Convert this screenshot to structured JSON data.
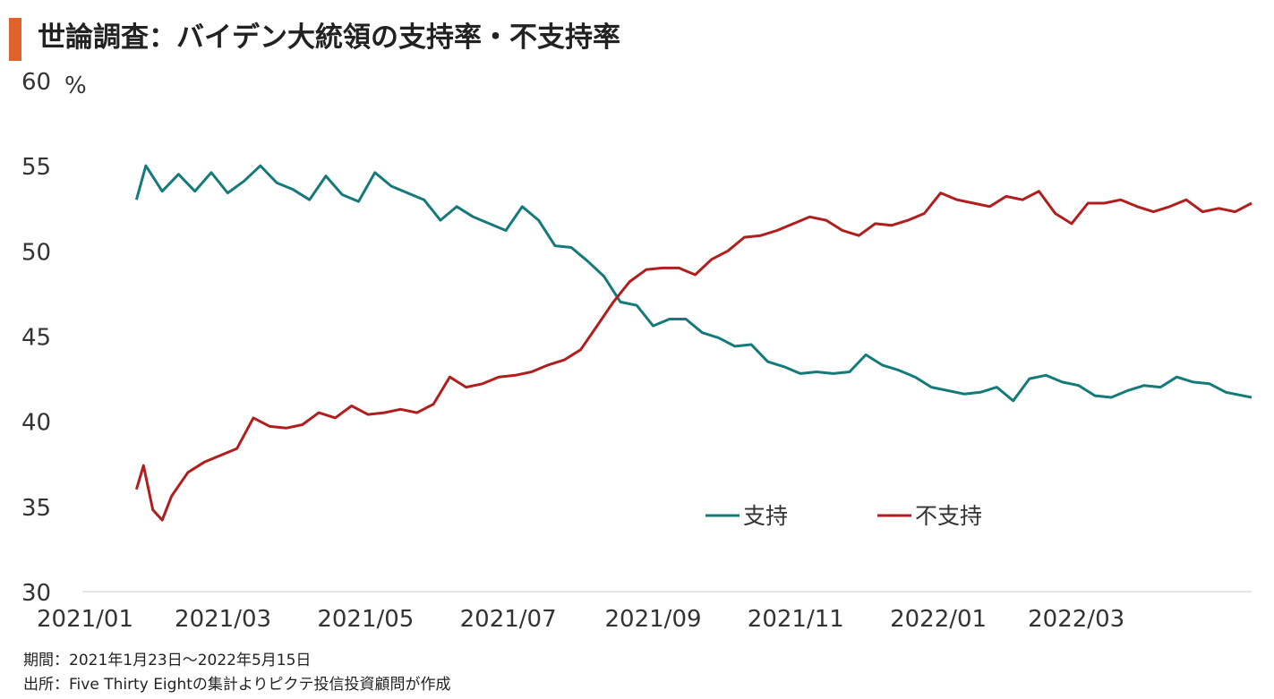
{
  "title": "世論調査：バイデン大統領の支持率・不支持率",
  "colors": {
    "title_accent": "#E0622B",
    "support": "#157A7A",
    "disapprove": "#B01E1E",
    "axis": "#DDDDDD"
  },
  "chart_data": {
    "type": "line",
    "title": "世論調査：バイデン大統領の支持率・不支持率",
    "y_unit": "%",
    "ylim": [
      30,
      60
    ],
    "y_ticks": [
      "30",
      "35",
      "40",
      "45",
      "50",
      "55",
      "60"
    ],
    "x_range": [
      "2021-01-01",
      "2022-05-15"
    ],
    "x_ticks": [
      {
        "date": "2021-01-01",
        "label": "2021/01"
      },
      {
        "date": "2021-03-01",
        "label": "2021/03"
      },
      {
        "date": "2021-05-01",
        "label": "2021/05"
      },
      {
        "date": "2021-07-01",
        "label": "2021/07"
      },
      {
        "date": "2021-09-01",
        "label": "2021/09"
      },
      {
        "date": "2021-11-01",
        "label": "2021/11"
      },
      {
        "date": "2022-01-01",
        "label": "2022/01"
      },
      {
        "date": "2022-03-01",
        "label": "2022/03"
      }
    ],
    "grid": false,
    "legend_position": "bottom-right",
    "series": [
      {
        "name": "支持",
        "color": "#157A7A",
        "points": [
          [
            "2021-01-23",
            53.0
          ],
          [
            "2021-01-27",
            55.0
          ],
          [
            "2021-02-03",
            53.5
          ],
          [
            "2021-02-10",
            54.5
          ],
          [
            "2021-02-17",
            53.5
          ],
          [
            "2021-02-24",
            54.6
          ],
          [
            "2021-03-03",
            53.4
          ],
          [
            "2021-03-10",
            54.1
          ],
          [
            "2021-03-17",
            55.0
          ],
          [
            "2021-03-24",
            54.0
          ],
          [
            "2021-03-31",
            53.6
          ],
          [
            "2021-04-07",
            53.0
          ],
          [
            "2021-04-14",
            54.4
          ],
          [
            "2021-04-21",
            53.3
          ],
          [
            "2021-04-28",
            52.9
          ],
          [
            "2021-05-05",
            54.6
          ],
          [
            "2021-05-12",
            53.8
          ],
          [
            "2021-05-19",
            53.4
          ],
          [
            "2021-05-26",
            53.0
          ],
          [
            "2021-06-02",
            51.8
          ],
          [
            "2021-06-09",
            52.6
          ],
          [
            "2021-06-16",
            52.0
          ],
          [
            "2021-06-23",
            51.6
          ],
          [
            "2021-06-30",
            51.2
          ],
          [
            "2021-07-07",
            52.6
          ],
          [
            "2021-07-14",
            51.8
          ],
          [
            "2021-07-21",
            50.3
          ],
          [
            "2021-07-28",
            50.2
          ],
          [
            "2021-08-04",
            49.4
          ],
          [
            "2021-08-11",
            48.5
          ],
          [
            "2021-08-18",
            47.0
          ],
          [
            "2021-08-25",
            46.8
          ],
          [
            "2021-09-01",
            45.6
          ],
          [
            "2021-09-08",
            46.0
          ],
          [
            "2021-09-15",
            46.0
          ],
          [
            "2021-09-22",
            45.2
          ],
          [
            "2021-09-29",
            44.9
          ],
          [
            "2021-10-06",
            44.4
          ],
          [
            "2021-10-13",
            44.5
          ],
          [
            "2021-10-20",
            43.5
          ],
          [
            "2021-10-27",
            43.2
          ],
          [
            "2021-11-03",
            42.8
          ],
          [
            "2021-11-10",
            42.9
          ],
          [
            "2021-11-17",
            42.8
          ],
          [
            "2021-11-24",
            42.9
          ],
          [
            "2021-12-01",
            43.9
          ],
          [
            "2021-12-08",
            43.3
          ],
          [
            "2021-12-15",
            43.0
          ],
          [
            "2021-12-22",
            42.6
          ],
          [
            "2021-12-29",
            42.0
          ],
          [
            "2022-01-05",
            41.8
          ],
          [
            "2022-01-12",
            41.6
          ],
          [
            "2022-01-19",
            41.7
          ],
          [
            "2022-01-26",
            42.0
          ],
          [
            "2022-02-02",
            41.2
          ],
          [
            "2022-02-09",
            42.5
          ],
          [
            "2022-02-16",
            42.7
          ],
          [
            "2022-02-23",
            42.3
          ],
          [
            "2022-03-02",
            42.1
          ],
          [
            "2022-03-09",
            41.5
          ],
          [
            "2022-03-16",
            41.4
          ],
          [
            "2022-03-23",
            41.8
          ],
          [
            "2022-03-30",
            42.1
          ],
          [
            "2022-04-06",
            42.0
          ],
          [
            "2022-04-13",
            42.6
          ],
          [
            "2022-04-20",
            42.3
          ],
          [
            "2022-04-27",
            42.2
          ],
          [
            "2022-05-04",
            41.7
          ],
          [
            "2022-05-15",
            41.4
          ]
        ]
      },
      {
        "name": "不支持",
        "color": "#B01E1E",
        "points": [
          [
            "2021-01-23",
            36.0
          ],
          [
            "2021-01-26",
            37.4
          ],
          [
            "2021-01-30",
            34.8
          ],
          [
            "2021-02-03",
            34.2
          ],
          [
            "2021-02-07",
            35.6
          ],
          [
            "2021-02-14",
            37.0
          ],
          [
            "2021-02-21",
            37.6
          ],
          [
            "2021-02-28",
            38.0
          ],
          [
            "2021-03-07",
            38.4
          ],
          [
            "2021-03-14",
            40.2
          ],
          [
            "2021-03-21",
            39.7
          ],
          [
            "2021-03-28",
            39.6
          ],
          [
            "2021-04-04",
            39.8
          ],
          [
            "2021-04-11",
            40.5
          ],
          [
            "2021-04-18",
            40.2
          ],
          [
            "2021-04-25",
            40.9
          ],
          [
            "2021-05-02",
            40.4
          ],
          [
            "2021-05-09",
            40.5
          ],
          [
            "2021-05-16",
            40.7
          ],
          [
            "2021-05-23",
            40.5
          ],
          [
            "2021-05-30",
            41.0
          ],
          [
            "2021-06-06",
            42.6
          ],
          [
            "2021-06-13",
            42.0
          ],
          [
            "2021-06-20",
            42.2
          ],
          [
            "2021-06-27",
            42.6
          ],
          [
            "2021-07-04",
            42.7
          ],
          [
            "2021-07-11",
            42.9
          ],
          [
            "2021-07-18",
            43.3
          ],
          [
            "2021-07-25",
            43.6
          ],
          [
            "2021-08-01",
            44.2
          ],
          [
            "2021-08-08",
            45.6
          ],
          [
            "2021-08-15",
            47.0
          ],
          [
            "2021-08-22",
            48.2
          ],
          [
            "2021-08-29",
            48.9
          ],
          [
            "2021-09-05",
            49.0
          ],
          [
            "2021-09-12",
            49.0
          ],
          [
            "2021-09-19",
            48.6
          ],
          [
            "2021-09-26",
            49.5
          ],
          [
            "2021-10-03",
            50.0
          ],
          [
            "2021-10-10",
            50.8
          ],
          [
            "2021-10-17",
            50.9
          ],
          [
            "2021-10-24",
            51.2
          ],
          [
            "2021-10-31",
            51.6
          ],
          [
            "2021-11-07",
            52.0
          ],
          [
            "2021-11-14",
            51.8
          ],
          [
            "2021-11-21",
            51.2
          ],
          [
            "2021-11-28",
            50.9
          ],
          [
            "2021-12-05",
            51.6
          ],
          [
            "2021-12-12",
            51.5
          ],
          [
            "2021-12-19",
            51.8
          ],
          [
            "2021-12-26",
            52.2
          ],
          [
            "2022-01-02",
            53.4
          ],
          [
            "2022-01-09",
            53.0
          ],
          [
            "2022-01-16",
            52.8
          ],
          [
            "2022-01-23",
            52.6
          ],
          [
            "2022-01-30",
            53.2
          ],
          [
            "2022-02-06",
            53.0
          ],
          [
            "2022-02-13",
            53.5
          ],
          [
            "2022-02-20",
            52.2
          ],
          [
            "2022-02-27",
            51.6
          ],
          [
            "2022-03-06",
            52.8
          ],
          [
            "2022-03-13",
            52.8
          ],
          [
            "2022-03-20",
            53.0
          ],
          [
            "2022-03-27",
            52.6
          ],
          [
            "2022-04-03",
            52.3
          ],
          [
            "2022-04-10",
            52.6
          ],
          [
            "2022-04-17",
            53.0
          ],
          [
            "2022-04-24",
            52.3
          ],
          [
            "2022-05-01",
            52.5
          ],
          [
            "2022-05-08",
            52.3
          ],
          [
            "2022-05-15",
            52.8
          ]
        ]
      }
    ]
  },
  "footnotes": {
    "period": "期間：2021年1月23日～2022年5月15日",
    "source": "出所：Five Thirty Eightの集計よりピクテ投信投資顧問が作成"
  }
}
